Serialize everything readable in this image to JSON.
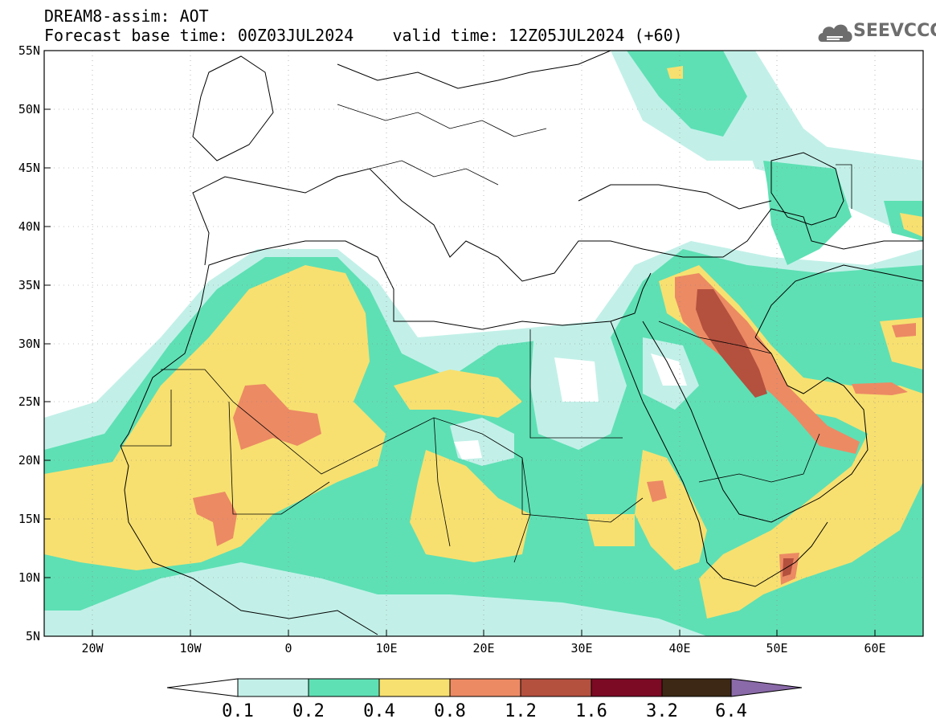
{
  "header": {
    "title_line1": "DREAM8-assim: AOT",
    "title_line2": "Forecast base time: 00Z03JUL2024    valid time: 12Z05JUL2024 (+60)"
  },
  "logo": {
    "text": "SEEVCCC",
    "icon": "cloud-icon",
    "color": "#6d6d6d"
  },
  "map": {
    "lon_range": [
      -25,
      65
    ],
    "lat_range": [
      5,
      55
    ],
    "lat_labels": [
      "55N",
      "50N",
      "45N",
      "40N",
      "35N",
      "30N",
      "25N",
      "20N",
      "15N",
      "10N",
      "5N"
    ],
    "lon_labels": [
      "20W",
      "10W",
      "0",
      "10E",
      "20E",
      "30E",
      "40E",
      "50E",
      "60E"
    ]
  },
  "colorbar": {
    "labels": [
      "0.1",
      "0.2",
      "0.4",
      "0.8",
      "1.2",
      "1.6",
      "3.2",
      "6.4"
    ],
    "colors": [
      "#ffffff",
      "#c2f0e8",
      "#5ee0b4",
      "#f7e070",
      "#ec8a64",
      "#b4503e",
      "#7c0a24",
      "#3c2814",
      "#8a6aa8"
    ]
  },
  "palette": {
    "l1": "#c2f0e8",
    "l2": "#5ee0b4",
    "l3": "#f7e070",
    "l4": "#ec8a64",
    "l5": "#b4503e"
  }
}
